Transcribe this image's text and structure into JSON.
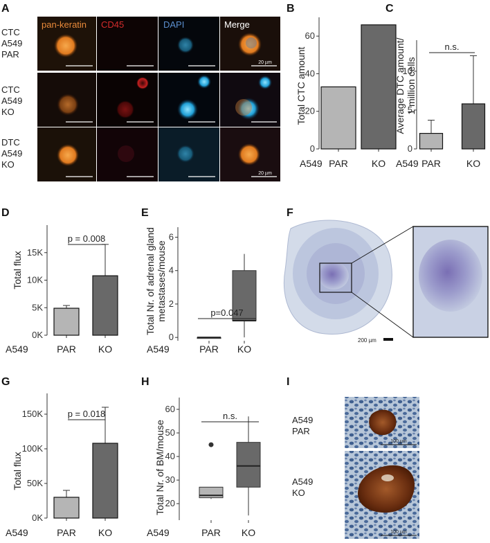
{
  "panels": {
    "A": {
      "label": "A",
      "columns": [
        "pan-keratin",
        "CD45",
        "DAPI",
        "Merge"
      ],
      "column_colors": [
        "#e98a3a",
        "#d42c2c",
        "#5b8fcf",
        "#ffffff"
      ],
      "rows": [
        {
          "l1": "CTC",
          "l2": "A549",
          "l3": "PAR"
        },
        {
          "l1": "CTC",
          "l2": "A549",
          "l3": "KO"
        },
        {
          "l1": "DTC",
          "l2": "A549",
          "l3": "KO"
        }
      ],
      "scale_bar": "20 µm"
    },
    "B": {
      "label": "B",
      "group_label": "A549",
      "ylabel": "Total CTC amount"
    },
    "C": {
      "label": "C",
      "group_label": "A549",
      "ylabel_line1": "Average DTC amount/",
      "ylabel_line2": "1 million cells",
      "significance": "n.s."
    },
    "D": {
      "label": "D",
      "group_label": "A549",
      "ylabel": "Total flux",
      "significance": "p = 0.008"
    },
    "E": {
      "label": "E",
      "group_label": "A549",
      "ylabel_line1": "Total Nr. of adrenal gland",
      "ylabel_line2": "metastases/mouse",
      "significance": "p=0.047"
    },
    "F": {
      "label": "F",
      "scale_bar": "200 µm"
    },
    "G": {
      "label": "G",
      "group_label": "A549",
      "ylabel": "Total flux",
      "significance": "p = 0.018"
    },
    "H": {
      "label": "H",
      "group_label": "A549",
      "ylabel": "Total Nr. of BM/mouse",
      "significance": "n.s."
    },
    "I": {
      "label": "I",
      "rows": [
        {
          "l1": "A549",
          "l2": "PAR"
        },
        {
          "l1": "A549",
          "l2": "KO"
        }
      ],
      "scale_bar": "100 µm"
    }
  },
  "chart_data": [
    {
      "id": "B",
      "type": "bar",
      "categories": [
        "PAR",
        "KO"
      ],
      "values": [
        33,
        66
      ],
      "colors": [
        "#b5b5b5",
        "#696969"
      ],
      "ylabel": "Total CTC amount",
      "ylim": [
        0,
        70
      ],
      "yticks": [
        0,
        20,
        40,
        60
      ],
      "ytick_labels": [
        "0",
        "20",
        "40",
        "60"
      ]
    },
    {
      "id": "C",
      "type": "bar",
      "categories": [
        "PAR",
        "KO"
      ],
      "values": [
        2.0,
        5.8
      ],
      "errors": [
        1.7,
        6.2
      ],
      "colors": [
        "#b5b5b5",
        "#696969"
      ],
      "ylabel": "Average DTC amount/ 1 million cells",
      "ylim": [
        0,
        14
      ],
      "yticks": [
        0,
        5,
        10
      ],
      "ytick_labels": [
        "0",
        "5",
        "10"
      ],
      "significance": "n.s."
    },
    {
      "id": "D",
      "type": "bar",
      "categories": [
        "PAR",
        "KO"
      ],
      "values": [
        4900,
        10800
      ],
      "errors": [
        500,
        5700
      ],
      "colors": [
        "#b5b5b5",
        "#696969"
      ],
      "ylabel": "Total flux",
      "ylim": [
        0,
        20000
      ],
      "yticks": [
        0,
        5000,
        10000,
        15000
      ],
      "ytick_labels": [
        "0K",
        "5K",
        "10K",
        "15K"
      ],
      "significance": "p = 0.008"
    },
    {
      "id": "E",
      "type": "box",
      "categories": [
        "PAR",
        "KO"
      ],
      "boxes": [
        {
          "min": 0,
          "q1": 0,
          "median": 0,
          "q3": 0,
          "max": 0,
          "outliers": []
        },
        {
          "min": 0,
          "q1": 1,
          "median": 1,
          "q3": 4,
          "max": 5,
          "outliers": []
        }
      ],
      "colors": [
        "#b5b5b5",
        "#696969"
      ],
      "ylabel": "Total Nr. of adrenal gland metastases/mouse",
      "ylim": [
        -0.2,
        6.6
      ],
      "yticks": [
        0,
        2,
        4,
        6
      ],
      "ytick_labels": [
        "0",
        "2",
        "4",
        "6"
      ],
      "significance": "p=0.047"
    },
    {
      "id": "G",
      "type": "bar",
      "categories": [
        "PAR",
        "KO"
      ],
      "values": [
        30000,
        108000
      ],
      "errors": [
        10000,
        52000
      ],
      "colors": [
        "#b5b5b5",
        "#696969"
      ],
      "ylabel": "Total flux",
      "ylim": [
        0,
        180000
      ],
      "yticks": [
        0,
        50000,
        100000,
        150000
      ],
      "ytick_labels": [
        "0K",
        "50K",
        "100K",
        "150K"
      ],
      "significance": "p = 0.018"
    },
    {
      "id": "H",
      "type": "box",
      "categories": [
        "PAR",
        "KO"
      ],
      "boxes": [
        {
          "min": 22,
          "q1": 22.5,
          "median": 23.5,
          "q3": 27,
          "max": 27,
          "outliers": [
            45
          ]
        },
        {
          "min": 15,
          "q1": 27,
          "median": 36,
          "q3": 46,
          "max": 57,
          "outliers": []
        }
      ],
      "colors": [
        "#b5b5b5",
        "#696969"
      ],
      "ylabel": "Total Nr. of BM/mouse",
      "ylim": [
        13,
        65
      ],
      "yticks": [
        20,
        30,
        40,
        50,
        60
      ],
      "ytick_labels": [
        "20",
        "30",
        "40",
        "50",
        "60"
      ],
      "significance": "n.s."
    }
  ]
}
